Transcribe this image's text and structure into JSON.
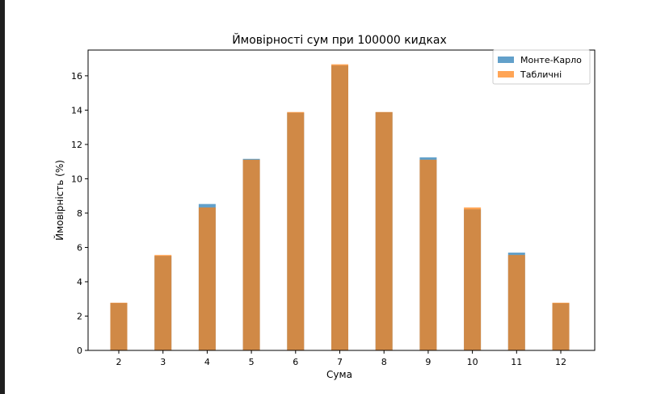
{
  "chart_data": {
    "type": "bar",
    "title": "Ймовірності сум при 100000 кидках",
    "xlabel": "Сума",
    "ylabel": "Ймовірність (%)",
    "categories": [
      "2",
      "3",
      "4",
      "5",
      "6",
      "7",
      "8",
      "9",
      "10",
      "11",
      "12"
    ],
    "ylim": [
      0,
      17.5
    ],
    "yticks": [
      "0",
      "2",
      "4",
      "6",
      "8",
      "10",
      "12",
      "14",
      "16"
    ],
    "grid": false,
    "legend_position": "top-right",
    "series": [
      {
        "name": "Монте-Карло",
        "color": "#1f77b4",
        "values": [
          2.76,
          5.5,
          8.53,
          11.16,
          13.85,
          16.6,
          13.88,
          11.25,
          8.22,
          5.7,
          2.75
        ]
      },
      {
        "name": "Табличні",
        "color": "#ff7f0e",
        "values": [
          2.78,
          5.56,
          8.33,
          11.11,
          13.89,
          16.67,
          13.89,
          11.11,
          8.33,
          5.56,
          2.78
        ]
      }
    ]
  }
}
